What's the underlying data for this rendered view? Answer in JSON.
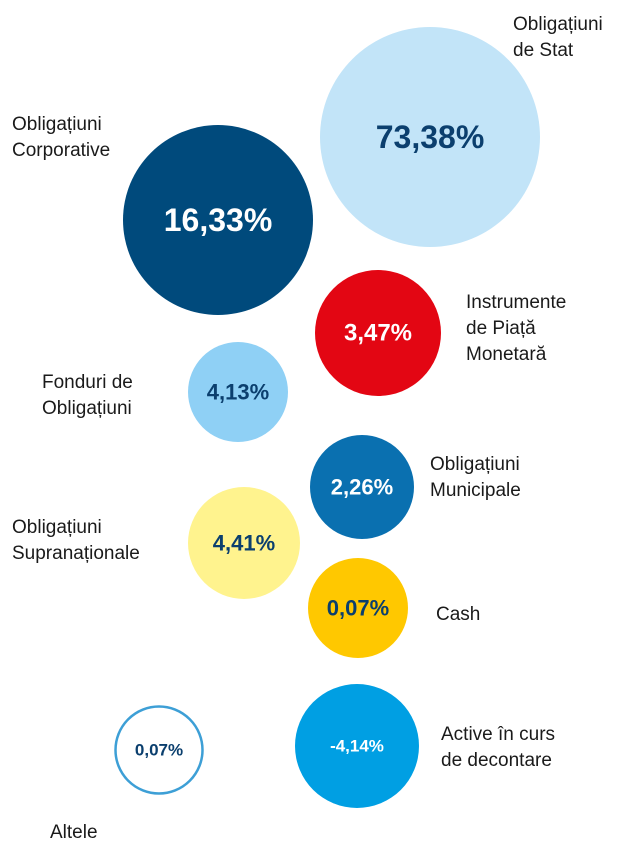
{
  "chart_data": {
    "type": "bubble",
    "categories": [
      [
        "Obligațiuni",
        "de Stat"
      ],
      [
        "Obligațiuni",
        "Corporative"
      ],
      [
        "Instrumente",
        "de Piață",
        "Monetară"
      ],
      [
        "Fonduri de",
        "Obligațiuni"
      ],
      [
        "Obligațiuni",
        "Municipale"
      ],
      [
        "Obligațiuni",
        "Supranaționale"
      ],
      [
        "Cash"
      ],
      [
        "Active în curs",
        "de decontare"
      ],
      [
        "Altele"
      ]
    ],
    "values": [
      73.38,
      16.33,
      3.47,
      4.13,
      2.26,
      4.41,
      0.07,
      -4.14,
      0.07
    ],
    "value_labels": [
      "73,38%",
      "16,33%",
      "3,47%",
      "4,13%",
      "2,26%",
      "4,41%",
      "0,07%",
      "-4,14%",
      "0,07%"
    ],
    "colors": [
      "#c2e4f8",
      "#004a7c",
      "#e30613",
      "#8fd0f5",
      "#0a70b0",
      "#fff38e",
      "#ffc800",
      "#009fe3",
      "#ffffff"
    ],
    "outline_colors": [
      null,
      null,
      null,
      null,
      null,
      null,
      null,
      null,
      "#3d9fd6"
    ],
    "text_colors": [
      "#0b3f6e",
      "#ffffff",
      "#ffffff",
      "#0b3f6e",
      "#ffffff",
      "#0b3f6e",
      "#0b3f6e",
      "#ffffff",
      "#0b3f6e"
    ]
  }
}
